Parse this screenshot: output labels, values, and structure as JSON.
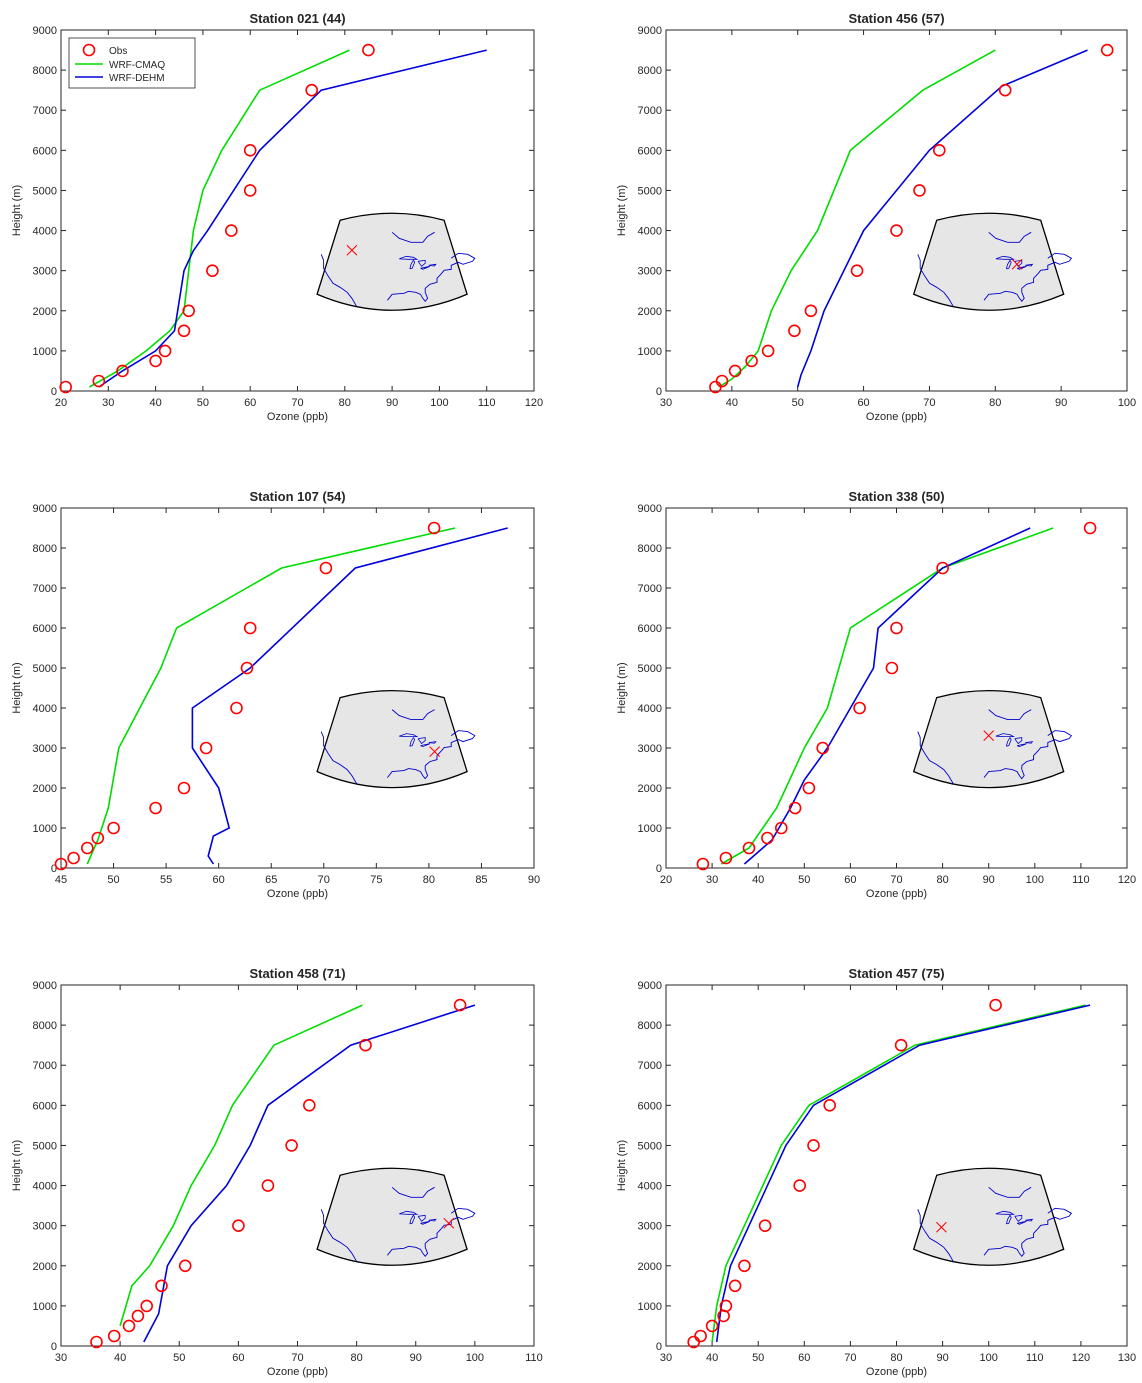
{
  "colors": {
    "obs": "#ff0000",
    "cmaq": "#00dd00",
    "dehm": "#0000dd",
    "map_fill": "#e6e6e6",
    "coast": "#0000cc",
    "marker": "#ff0000"
  },
  "legend": {
    "location": "top-left",
    "entries": [
      "Obs",
      "WRF-CMAQ",
      "WRF-DEHM"
    ]
  },
  "chart_data": [
    {
      "type": "line",
      "title": "Station 021 (44)",
      "xlabel": "Ozone (ppb)",
      "ylabel": "Height (m)",
      "xlim": [
        20,
        120
      ],
      "ylim": [
        0,
        9000
      ],
      "xticks": [
        "20",
        "30",
        "40",
        "50",
        "60",
        "70",
        "80",
        "90",
        "100",
        "110",
        "120"
      ],
      "yticks": [
        "0",
        "1000",
        "2000",
        "3000",
        "4000",
        "5000",
        "6000",
        "7000",
        "8000",
        "9000"
      ],
      "legend": true,
      "station_marker": {
        "lon": -112,
        "lat": 51
      },
      "obs": {
        "name": "Obs",
        "x": [
          21,
          28,
          33,
          40,
          42,
          46,
          47,
          52,
          56,
          60,
          60,
          73,
          85
        ],
        "y": [
          100,
          250,
          500,
          750,
          1000,
          1500,
          2000,
          3000,
          4000,
          5000,
          6000,
          7500,
          8500
        ]
      },
      "series": [
        {
          "name": "WRF-CMAQ",
          "x": [
            26,
            32,
            38,
            43,
            46,
            47,
            48,
            50,
            54,
            62,
            81
          ],
          "y": [
            100,
            500,
            1000,
            1500,
            2000,
            3000,
            4000,
            5000,
            6000,
            7500,
            8500
          ]
        },
        {
          "name": "WRF-DEHM",
          "x": [
            28,
            33,
            40,
            44,
            46,
            48,
            51,
            62,
            75,
            110
          ],
          "y": [
            100,
            500,
            1000,
            1500,
            3000,
            3500,
            4000,
            6000,
            7500,
            8500
          ]
        }
      ]
    },
    {
      "type": "line",
      "title": "Station 456 (57)",
      "xlabel": "Ozone (ppb)",
      "ylabel": "Height (m)",
      "xlim": [
        30,
        100
      ],
      "ylim": [
        0,
        9000
      ],
      "xticks": [
        "30",
        "40",
        "50",
        "60",
        "70",
        "80",
        "90",
        "100"
      ],
      "yticks": [
        "0",
        "1000",
        "2000",
        "3000",
        "4000",
        "5000",
        "6000",
        "7000",
        "8000",
        "9000"
      ],
      "legend": false,
      "station_marker": {
        "lon": -83,
        "lat": 44
      },
      "obs": {
        "name": "Obs",
        "x": [
          37.5,
          38.5,
          40.5,
          43,
          45.5,
          49.5,
          52,
          59,
          65,
          68.5,
          71.5,
          81.5,
          97
        ],
        "y": [
          100,
          250,
          500,
          750,
          1000,
          1500,
          2000,
          3000,
          4000,
          5000,
          6000,
          7500,
          8500
        ]
      },
      "series": [
        {
          "name": "WRF-CMAQ",
          "x": [
            38,
            40,
            42,
            44,
            46,
            49,
            53,
            58,
            69,
            80
          ],
          "y": [
            100,
            300,
            600,
            1000,
            2000,
            3000,
            4000,
            6000,
            7500,
            8500
          ]
        },
        {
          "name": "WRF-DEHM",
          "x": [
            50,
            50.5,
            52,
            54,
            60,
            70,
            81,
            94
          ],
          "y": [
            100,
            400,
            1000,
            2000,
            4000,
            6000,
            7600,
            8500
          ]
        }
      ]
    },
    {
      "type": "line",
      "title": "Station 107 (54)",
      "xlabel": "Ozone (ppb)",
      "ylabel": "Height (m)",
      "xlim": [
        45,
        90
      ],
      "ylim": [
        0,
        9000
      ],
      "xticks": [
        "45",
        "50",
        "55",
        "60",
        "65",
        "70",
        "75",
        "80",
        "85",
        "90"
      ],
      "yticks": [
        "0",
        "1000",
        "2000",
        "3000",
        "4000",
        "5000",
        "6000",
        "7000",
        "8000",
        "9000"
      ],
      "legend": false,
      "station_marker": {
        "lon": -77,
        "lat": 39
      },
      "obs": {
        "name": "Obs",
        "x": [
          45,
          46.2,
          47.5,
          48.5,
          50,
          54,
          56.7,
          58.8,
          61.7,
          62.7,
          63,
          70.2,
          80.5
        ],
        "y": [
          100,
          250,
          500,
          750,
          1000,
          1500,
          2000,
          3000,
          4000,
          5000,
          6000,
          7500,
          8500
        ]
      },
      "series": [
        {
          "name": "WRF-CMAQ",
          "x": [
            47.5,
            48.5,
            49.5,
            50.5,
            52.5,
            54.5,
            56,
            66,
            82.5
          ],
          "y": [
            100,
            700,
            1500,
            3000,
            4000,
            5000,
            6000,
            7500,
            8500
          ]
        },
        {
          "name": "WRF-DEHM",
          "x": [
            59.5,
            59,
            59.5,
            61,
            60,
            57.5,
            57.5,
            63,
            73,
            87.5
          ],
          "y": [
            100,
            300,
            800,
            1000,
            2000,
            3000,
            4000,
            5000,
            7500,
            8500
          ]
        }
      ]
    },
    {
      "type": "line",
      "title": "Station 338 (50)",
      "xlabel": "Ozone (ppb)",
      "ylabel": "Height (m)",
      "xlim": [
        20,
        120
      ],
      "ylim": [
        0,
        9000
      ],
      "xticks": [
        "20",
        "30",
        "40",
        "50",
        "60",
        "70",
        "80",
        "90",
        "100",
        "110",
        "120"
      ],
      "yticks": [
        "0",
        "1000",
        "2000",
        "3000",
        "4000",
        "5000",
        "6000",
        "7000",
        "8000",
        "9000"
      ],
      "legend": false,
      "station_marker": {
        "lon": -95,
        "lat": 47
      },
      "obs": {
        "name": "Obs",
        "x": [
          28,
          33,
          38,
          42,
          45,
          48,
          51,
          54,
          62,
          69,
          70,
          80,
          112
        ],
        "y": [
          100,
          250,
          500,
          750,
          1000,
          1500,
          2000,
          3000,
          4000,
          5000,
          6000,
          7500,
          8500
        ]
      },
      "series": [
        {
          "name": "WRF-CMAQ",
          "x": [
            32,
            38,
            44,
            46,
            50,
            55,
            60,
            80,
            104
          ],
          "y": [
            100,
            500,
            1500,
            2000,
            3000,
            4000,
            6000,
            7500,
            8500
          ]
        },
        {
          "name": "WRF-DEHM",
          "x": [
            37,
            43,
            47,
            50,
            55,
            65,
            66,
            80,
            99
          ],
          "y": [
            100,
            700,
            1500,
            2200,
            3000,
            5000,
            6000,
            7500,
            8500
          ]
        }
      ]
    },
    {
      "type": "line",
      "title": "Station 458 (71)",
      "xlabel": "Ozone (ppb)",
      "ylabel": "Height (m)",
      "xlim": [
        30,
        110
      ],
      "ylim": [
        0,
        9000
      ],
      "xticks": [
        "30",
        "40",
        "50",
        "60",
        "70",
        "80",
        "90",
        "100",
        "110"
      ],
      "yticks": [
        "0",
        "1000",
        "2000",
        "3000",
        "4000",
        "5000",
        "6000",
        "7000",
        "8000",
        "9000"
      ],
      "legend": false,
      "station_marker": {
        "lon": -71,
        "lat": 42
      },
      "obs": {
        "name": "Obs",
        "x": [
          36,
          39,
          41.5,
          43,
          44.5,
          47,
          51,
          60,
          65,
          69,
          72,
          81.5,
          97.5
        ],
        "y": [
          100,
          250,
          500,
          750,
          1000,
          1500,
          2000,
          3000,
          4000,
          5000,
          6000,
          7500,
          8500
        ]
      },
      "series": [
        {
          "name": "WRF-CMAQ",
          "x": [
            40,
            41,
            42,
            45,
            49,
            52,
            56,
            59,
            66,
            81
          ],
          "y": [
            500,
            1000,
            1500,
            2000,
            3000,
            4000,
            5000,
            6000,
            7500,
            8500
          ]
        },
        {
          "name": "WRF-DEHM",
          "x": [
            44,
            46.5,
            48,
            52,
            58,
            62,
            65,
            79,
            100
          ],
          "y": [
            100,
            800,
            2000,
            3000,
            4000,
            5000,
            6000,
            7500,
            8500
          ]
        }
      ]
    },
    {
      "type": "line",
      "title": "Station 457 (75)",
      "xlabel": "Ozone (ppb)",
      "ylabel": "Height (m)",
      "xlim": [
        30,
        130
      ],
      "ylim": [
        0,
        9000
      ],
      "xticks": [
        "30",
        "40",
        "50",
        "60",
        "70",
        "80",
        "90",
        "100",
        "110",
        "120",
        "130"
      ],
      "yticks": [
        "0",
        "1000",
        "2000",
        "3000",
        "4000",
        "5000",
        "6000",
        "7000",
        "8000",
        "9000"
      ],
      "legend": false,
      "station_marker": {
        "lon": -115,
        "lat": 40
      },
      "obs": {
        "name": "Obs",
        "x": [
          36,
          37.5,
          40,
          42.5,
          43,
          45,
          47,
          51.5,
          59,
          62,
          65.5,
          81,
          101.5
        ],
        "y": [
          100,
          250,
          500,
          750,
          1000,
          1500,
          2000,
          3000,
          4000,
          5000,
          6000,
          7500,
          8500
        ]
      },
      "series": [
        {
          "name": "WRF-CMAQ",
          "x": [
            40,
            41,
            43,
            47,
            51,
            55,
            61,
            84,
            121
          ],
          "y": [
            100,
            1000,
            2000,
            3000,
            4000,
            5000,
            6000,
            7500,
            8500
          ]
        },
        {
          "name": "WRF-DEHM",
          "x": [
            41,
            42,
            44,
            48,
            52,
            56,
            62,
            85,
            122
          ],
          "y": [
            100,
            1000,
            2000,
            3000,
            4000,
            5000,
            6000,
            7500,
            8500
          ]
        }
      ]
    }
  ]
}
